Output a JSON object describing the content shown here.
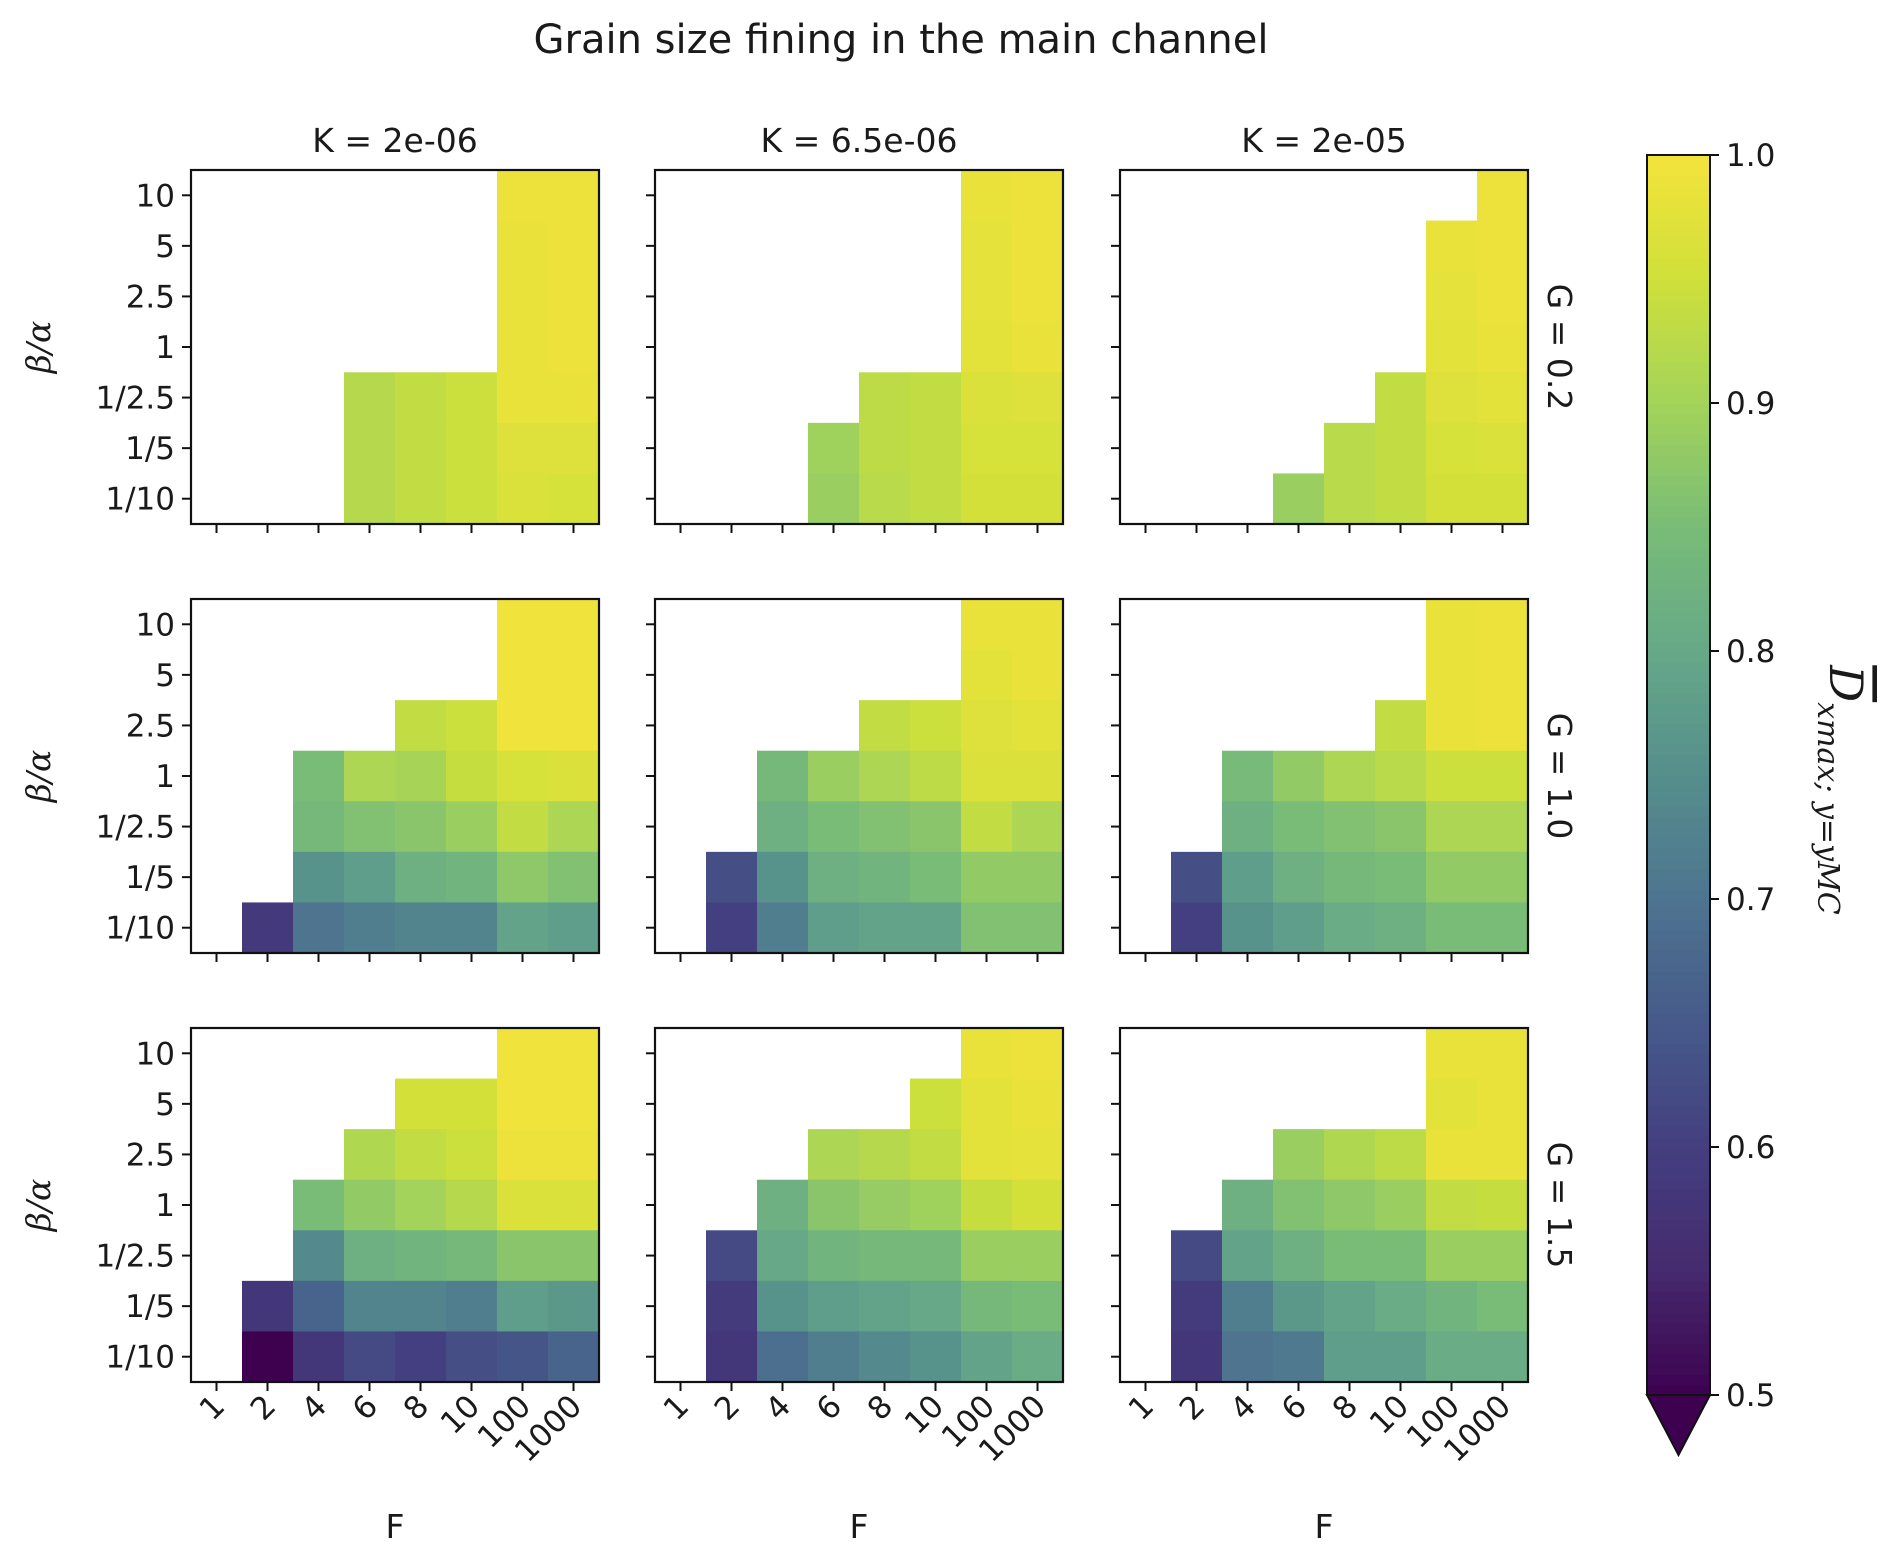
{
  "chart_data": {
    "type": "heatmap",
    "title": "Grain size fining in the main channel",
    "xlabel": "F",
    "ylabel": "β/α",
    "x_categories": [
      "1",
      "2",
      "4",
      "6",
      "8",
      "10",
      "100",
      "1000"
    ],
    "y_categories_top_to_bottom": [
      "10",
      "5",
      "2.5",
      "1",
      "1/2.5",
      "1/5",
      "1/10"
    ],
    "column_titles": [
      "K = 2e-06",
      "K = 6.5e-06",
      "K = 2e-05"
    ],
    "row_titles": [
      "G = 0.2",
      "G = 1.0",
      "G = 1.5"
    ],
    "colorbar": {
      "label_main": "D",
      "label_sub": "x_max; y=y_MC",
      "range": [
        0.5,
        1.0
      ],
      "extend": "min",
      "ticks": [
        "1.0",
        "0.9",
        "0.8",
        "0.7",
        "0.6",
        "0.5"
      ],
      "colormap": "viridis",
      "stops": [
        [
          0.5,
          "#3d0150"
        ],
        [
          0.55,
          "#452a6e"
        ],
        [
          0.6,
          "#443f80"
        ],
        [
          0.65,
          "#465a8a"
        ],
        [
          0.7,
          "#4e7490"
        ],
        [
          0.75,
          "#558e8c"
        ],
        [
          0.8,
          "#66a888"
        ],
        [
          0.85,
          "#79bc77"
        ],
        [
          0.9,
          "#a3d35a"
        ],
        [
          0.95,
          "#cfe03a"
        ],
        [
          1.0,
          "#f4e33c"
        ]
      ]
    },
    "panels": [
      {
        "K": "2e-06",
        "G": "0.2",
        "values": [
          [
            null,
            null,
            null,
            null,
            null,
            null,
            0.99,
            0.99
          ],
          [
            null,
            null,
            null,
            null,
            null,
            null,
            0.985,
            0.99
          ],
          [
            null,
            null,
            null,
            null,
            null,
            null,
            0.985,
            0.99
          ],
          [
            null,
            null,
            null,
            null,
            null,
            null,
            0.985,
            0.99
          ],
          [
            null,
            null,
            null,
            0.92,
            0.935,
            0.945,
            0.985,
            0.985
          ],
          [
            null,
            null,
            null,
            0.92,
            0.935,
            0.945,
            0.97,
            0.97
          ],
          [
            null,
            null,
            null,
            0.92,
            0.935,
            0.945,
            0.965,
            0.96
          ]
        ]
      },
      {
        "K": "6.5e-06",
        "G": "0.2",
        "values": [
          [
            null,
            null,
            null,
            null,
            null,
            null,
            0.985,
            0.99
          ],
          [
            null,
            null,
            null,
            null,
            null,
            null,
            0.98,
            0.99
          ],
          [
            null,
            null,
            null,
            null,
            null,
            null,
            0.98,
            0.99
          ],
          [
            null,
            null,
            null,
            null,
            null,
            null,
            0.975,
            0.985
          ],
          [
            null,
            null,
            null,
            null,
            0.93,
            0.935,
            0.965,
            0.97
          ],
          [
            null,
            null,
            null,
            0.895,
            0.93,
            0.935,
            0.96,
            0.96
          ],
          [
            null,
            null,
            null,
            0.89,
            0.925,
            0.935,
            0.955,
            0.955
          ]
        ]
      },
      {
        "K": "2e-05",
        "G": "0.2",
        "values": [
          [
            null,
            null,
            null,
            null,
            null,
            null,
            null,
            0.99
          ],
          [
            null,
            null,
            null,
            null,
            null,
            null,
            0.985,
            0.99
          ],
          [
            null,
            null,
            null,
            null,
            null,
            null,
            0.98,
            0.99
          ],
          [
            null,
            null,
            null,
            null,
            null,
            null,
            0.975,
            0.985
          ],
          [
            null,
            null,
            null,
            null,
            null,
            0.935,
            0.97,
            0.975
          ],
          [
            null,
            null,
            null,
            null,
            0.925,
            0.935,
            0.96,
            0.965
          ],
          [
            null,
            null,
            null,
            0.89,
            0.925,
            0.935,
            0.955,
            0.955
          ]
        ]
      },
      {
        "K": "2e-06",
        "G": "1.0",
        "values": [
          [
            null,
            null,
            null,
            null,
            null,
            null,
            0.995,
            0.995
          ],
          [
            null,
            null,
            null,
            null,
            null,
            null,
            0.995,
            0.995
          ],
          [
            null,
            null,
            null,
            null,
            0.935,
            0.945,
            0.995,
            0.995
          ],
          [
            null,
            null,
            0.85,
            0.91,
            0.905,
            0.94,
            0.96,
            0.965
          ],
          [
            null,
            null,
            0.84,
            0.86,
            0.87,
            0.89,
            0.935,
            0.91
          ],
          [
            null,
            null,
            0.76,
            0.78,
            0.82,
            0.83,
            0.875,
            0.86
          ],
          [
            null,
            0.585,
            0.7,
            0.72,
            0.73,
            0.73,
            0.79,
            0.78
          ]
        ]
      },
      {
        "K": "6.5e-06",
        "G": "1.0",
        "values": [
          [
            null,
            null,
            null,
            null,
            null,
            null,
            0.985,
            0.985
          ],
          [
            null,
            null,
            null,
            null,
            null,
            null,
            0.975,
            0.985
          ],
          [
            null,
            null,
            null,
            null,
            0.935,
            0.945,
            0.97,
            0.975
          ],
          [
            null,
            null,
            0.84,
            0.89,
            0.91,
            0.93,
            0.965,
            0.965
          ],
          [
            null,
            null,
            0.82,
            0.85,
            0.86,
            0.87,
            0.935,
            0.91
          ],
          [
            null,
            0.63,
            0.76,
            0.82,
            0.83,
            0.85,
            0.88,
            0.88
          ],
          [
            null,
            0.6,
            0.72,
            0.78,
            0.79,
            0.79,
            0.86,
            0.86
          ]
        ]
      },
      {
        "K": "2e-05",
        "G": "1.0",
        "values": [
          [
            null,
            null,
            null,
            null,
            null,
            null,
            0.985,
            0.99
          ],
          [
            null,
            null,
            null,
            null,
            null,
            null,
            0.985,
            0.99
          ],
          [
            null,
            null,
            null,
            null,
            null,
            0.935,
            0.985,
            0.99
          ],
          [
            null,
            null,
            0.845,
            0.88,
            0.91,
            0.925,
            0.945,
            0.945
          ],
          [
            null,
            null,
            0.82,
            0.85,
            0.86,
            0.87,
            0.91,
            0.91
          ],
          [
            null,
            0.63,
            0.78,
            0.82,
            0.84,
            0.85,
            0.88,
            0.88
          ],
          [
            null,
            0.6,
            0.76,
            0.78,
            0.81,
            0.82,
            0.85,
            0.85
          ]
        ]
      },
      {
        "K": "2e-06",
        "G": "1.5",
        "values": [
          [
            null,
            null,
            null,
            null,
            null,
            null,
            0.995,
            0.995
          ],
          [
            null,
            null,
            null,
            null,
            0.955,
            0.955,
            0.995,
            0.995
          ],
          [
            null,
            null,
            null,
            0.915,
            0.935,
            0.945,
            0.99,
            0.99
          ],
          [
            null,
            null,
            0.85,
            0.88,
            0.9,
            0.92,
            0.965,
            0.965
          ],
          [
            null,
            null,
            0.74,
            0.82,
            0.83,
            0.84,
            0.87,
            0.87
          ],
          [
            null,
            0.58,
            0.67,
            0.73,
            0.73,
            0.72,
            0.78,
            0.77
          ],
          [
            null,
            0.5,
            0.58,
            0.62,
            0.6,
            0.63,
            0.64,
            0.67
          ]
        ]
      },
      {
        "K": "6.5e-06",
        "G": "1.5",
        "values": [
          [
            null,
            null,
            null,
            null,
            null,
            null,
            0.985,
            0.99
          ],
          [
            null,
            null,
            null,
            null,
            null,
            0.945,
            0.975,
            0.985
          ],
          [
            null,
            null,
            null,
            0.91,
            0.92,
            0.935,
            0.975,
            0.98
          ],
          [
            null,
            null,
            0.82,
            0.87,
            0.885,
            0.895,
            0.94,
            0.955
          ],
          [
            null,
            0.62,
            0.8,
            0.83,
            0.84,
            0.84,
            0.89,
            0.89
          ],
          [
            null,
            0.59,
            0.76,
            0.78,
            0.79,
            0.8,
            0.84,
            0.85
          ],
          [
            null,
            0.58,
            0.69,
            0.72,
            0.74,
            0.76,
            0.79,
            0.81
          ]
        ]
      },
      {
        "K": "2e-05",
        "G": "1.5",
        "values": [
          [
            null,
            null,
            null,
            null,
            null,
            null,
            0.985,
            0.985
          ],
          [
            null,
            null,
            null,
            null,
            null,
            null,
            0.975,
            0.985
          ],
          [
            null,
            null,
            null,
            0.89,
            0.915,
            0.93,
            0.985,
            0.985
          ],
          [
            null,
            null,
            0.82,
            0.86,
            0.875,
            0.89,
            0.935,
            0.94
          ],
          [
            null,
            0.62,
            0.79,
            0.82,
            0.85,
            0.85,
            0.89,
            0.89
          ],
          [
            null,
            0.59,
            0.72,
            0.77,
            0.79,
            0.81,
            0.83,
            0.85
          ],
          [
            null,
            0.58,
            0.7,
            0.71,
            0.78,
            0.78,
            0.81,
            0.81
          ]
        ]
      }
    ]
  }
}
